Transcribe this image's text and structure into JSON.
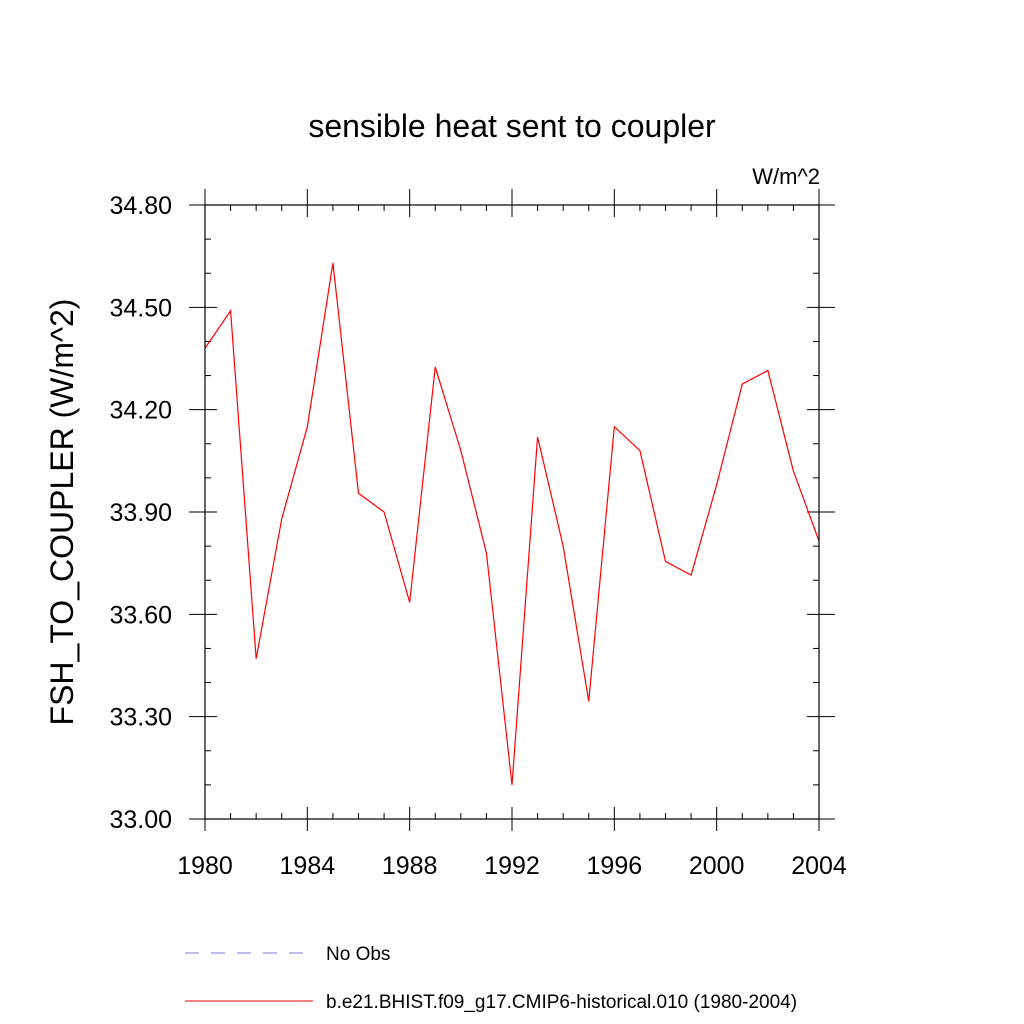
{
  "chart_data": {
    "type": "line",
    "title": "sensible heat sent to coupler",
    "units_label": "W/m^2",
    "ylabel": "FSH_TO_COUPLER  (W/m^2)",
    "xlabel": "",
    "xlim": [
      1980,
      2004
    ],
    "ylim": [
      33.0,
      34.8
    ],
    "x_ticks": [
      1980,
      1984,
      1988,
      1992,
      1996,
      2000,
      2004
    ],
    "x_tick_labels": [
      "1980",
      "1984",
      "1988",
      "1992",
      "1996",
      "2000",
      "2004"
    ],
    "x_minor_step": 1,
    "y_ticks": [
      33.0,
      33.3,
      33.6,
      33.9,
      34.2,
      34.5,
      34.8
    ],
    "y_tick_labels": [
      "33.00",
      "33.30",
      "33.60",
      "33.90",
      "34.20",
      "34.50",
      "34.80"
    ],
    "y_minor_step": 0.1,
    "grid": false,
    "legend_position": "bottom",
    "x": [
      1980,
      1981,
      1982,
      1983,
      1984,
      1985,
      1986,
      1987,
      1988,
      1989,
      1990,
      1991,
      1992,
      1993,
      1994,
      1995,
      1996,
      1997,
      1998,
      1999,
      2000,
      2001,
      2002,
      2003,
      2004
    ],
    "series": [
      {
        "name": "b.e21.BHIST.f09_g17.CMIP6-historical.010 (1980-2004)",
        "color": "#ff0000",
        "dash": "solid",
        "values": [
          34.38,
          34.49,
          33.47,
          33.88,
          34.15,
          34.63,
          33.955,
          33.9,
          33.635,
          34.325,
          34.08,
          33.78,
          33.1,
          34.12,
          33.8,
          33.345,
          34.15,
          34.08,
          33.755,
          33.715,
          33.98,
          34.275,
          34.315,
          34.02,
          33.815
        ]
      }
    ],
    "legend": [
      {
        "label": "No Obs",
        "color": "#7b7bd6",
        "dash": "dashed"
      },
      {
        "label": "b.e21.BHIST.f09_g17.CMIP6-historical.010 (1980-2004)",
        "color": "#ff0000",
        "dash": "solid"
      }
    ]
  }
}
